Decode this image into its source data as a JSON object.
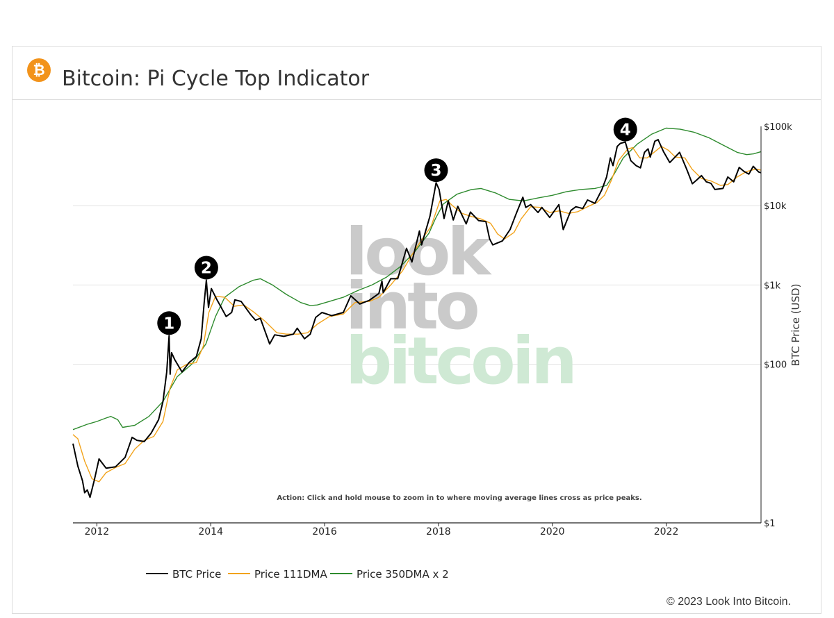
{
  "header": {
    "title": "Bitcoin: Pi Cycle Top Indicator",
    "logo_icon": "bitcoin-icon",
    "logo_color": "#f2931b"
  },
  "footer": {
    "copyright": "© 2023 Look Into Bitcoin."
  },
  "watermark": {
    "line1": "look",
    "line2": "into",
    "line3": "bitcoin"
  },
  "chart_data": {
    "type": "line",
    "title": "Bitcoin: Pi Cycle Top Indicator",
    "ylabel": "BTC Price (USD)",
    "xlabel": "",
    "y_scale": "log",
    "ylim": [
      1,
      100000
    ],
    "xlim": [
      "2011-08",
      "2023-09"
    ],
    "x_ticks": [
      "2012",
      "2014",
      "2016",
      "2018",
      "2020",
      "2022"
    ],
    "y_ticks": [
      "$1",
      "$100",
      "$1k",
      "$10k",
      "$100k"
    ],
    "y_tick_values": [
      1,
      100,
      1000,
      10000,
      100000
    ],
    "grid": "horizontal",
    "legend_position": "bottom",
    "annotation": "Action: Click and hold mouse to zoom in to where moving average lines cross as price peaks.",
    "markers": [
      {
        "label": "1",
        "x": "2013-04-09",
        "y": 230
      },
      {
        "label": "2",
        "x": "2013-12-04",
        "y": 1150
      },
      {
        "label": "3",
        "x": "2017-12-17",
        "y": 19500
      },
      {
        "label": "4",
        "x": "2021-04-14",
        "y": 63500
      }
    ],
    "series": [
      {
        "name": "BTC Price",
        "color": "#000000",
        "points": [
          [
            "2011-08-01",
            10
          ],
          [
            "2011-09-01",
            5.2
          ],
          [
            "2011-10-01",
            3.4
          ],
          [
            "2011-10-15",
            2.4
          ],
          [
            "2011-11-01",
            2.6
          ],
          [
            "2011-11-18",
            2.1
          ],
          [
            "2011-12-15",
            3.4
          ],
          [
            "2012-01-15",
            6.4
          ],
          [
            "2012-03-01",
            4.9
          ],
          [
            "2012-05-01",
            5.1
          ],
          [
            "2012-07-01",
            6.7
          ],
          [
            "2012-08-15",
            12
          ],
          [
            "2012-09-15",
            11
          ],
          [
            "2012-11-01",
            10.6
          ],
          [
            "2012-12-15",
            13.5
          ],
          [
            "2013-02-01",
            20
          ],
          [
            "2013-03-01",
            34
          ],
          [
            "2013-03-25",
            80
          ],
          [
            "2013-04-09",
            230
          ],
          [
            "2013-04-16",
            75
          ],
          [
            "2013-04-25",
            140
          ],
          [
            "2013-05-15",
            115
          ],
          [
            "2013-07-01",
            80
          ],
          [
            "2013-08-15",
            105
          ],
          [
            "2013-10-01",
            125
          ],
          [
            "2013-11-01",
            210
          ],
          [
            "2013-11-20",
            600
          ],
          [
            "2013-12-04",
            1150
          ],
          [
            "2013-12-18",
            520
          ],
          [
            "2014-01-05",
            900
          ],
          [
            "2014-02-10",
            650
          ],
          [
            "2014-03-01",
            560
          ],
          [
            "2014-04-10",
            400
          ],
          [
            "2014-05-15",
            450
          ],
          [
            "2014-06-05",
            650
          ],
          [
            "2014-07-15",
            620
          ],
          [
            "2014-09-15",
            420
          ],
          [
            "2014-10-15",
            360
          ],
          [
            "2014-11-15",
            380
          ],
          [
            "2015-01-14",
            180
          ],
          [
            "2015-02-15",
            235
          ],
          [
            "2015-04-15",
            225
          ],
          [
            "2015-06-15",
            240
          ],
          [
            "2015-07-10",
            285
          ],
          [
            "2015-08-25",
            210
          ],
          [
            "2015-10-01",
            240
          ],
          [
            "2015-11-05",
            390
          ],
          [
            "2015-12-15",
            450
          ],
          [
            "2016-02-15",
            410
          ],
          [
            "2016-05-01",
            450
          ],
          [
            "2016-06-18",
            730
          ],
          [
            "2016-08-15",
            575
          ],
          [
            "2016-10-15",
            640
          ],
          [
            "2016-12-15",
            780
          ],
          [
            "2017-01-04",
            1120
          ],
          [
            "2017-01-12",
            800
          ],
          [
            "2017-03-01",
            1200
          ],
          [
            "2017-04-15",
            1200
          ],
          [
            "2017-06-10",
            2900
          ],
          [
            "2017-07-15",
            1950
          ],
          [
            "2017-09-01",
            4800
          ],
          [
            "2017-09-15",
            3200
          ],
          [
            "2017-11-08",
            7400
          ],
          [
            "2017-12-17",
            19500
          ],
          [
            "2018-01-05",
            16000
          ],
          [
            "2018-02-06",
            6900
          ],
          [
            "2018-03-05",
            11500
          ],
          [
            "2018-04-06",
            6600
          ],
          [
            "2018-05-05",
            9800
          ],
          [
            "2018-06-28",
            5900
          ],
          [
            "2018-07-25",
            8300
          ],
          [
            "2018-09-15",
            6500
          ],
          [
            "2018-11-01",
            6300
          ],
          [
            "2018-11-25",
            3800
          ],
          [
            "2018-12-15",
            3200
          ],
          [
            "2019-02-15",
            3600
          ],
          [
            "2019-04-05",
            5000
          ],
          [
            "2019-05-15",
            8000
          ],
          [
            "2019-06-26",
            12800
          ],
          [
            "2019-07-15",
            9500
          ],
          [
            "2019-08-15",
            10300
          ],
          [
            "2019-10-01",
            8200
          ],
          [
            "2019-10-26",
            9500
          ],
          [
            "2019-12-15",
            7100
          ],
          [
            "2020-02-12",
            10300
          ],
          [
            "2020-03-12",
            5000
          ],
          [
            "2020-04-30",
            8700
          ],
          [
            "2020-06-01",
            9700
          ],
          [
            "2020-07-15",
            9200
          ],
          [
            "2020-08-15",
            11800
          ],
          [
            "2020-10-01",
            10700
          ],
          [
            "2020-11-15",
            16000
          ],
          [
            "2020-12-15",
            23000
          ],
          [
            "2021-01-08",
            40000
          ],
          [
            "2021-01-25",
            32000
          ],
          [
            "2021-02-21",
            56000
          ],
          [
            "2021-03-13",
            61000
          ],
          [
            "2021-04-14",
            63500
          ],
          [
            "2021-05-19",
            37000
          ],
          [
            "2021-06-22",
            32000
          ],
          [
            "2021-07-20",
            30000
          ],
          [
            "2021-08-15",
            47000
          ],
          [
            "2021-09-07",
            52000
          ],
          [
            "2021-09-21",
            41000
          ],
          [
            "2021-10-20",
            65000
          ],
          [
            "2021-11-10",
            68000
          ],
          [
            "2021-12-15",
            48000
          ],
          [
            "2022-01-24",
            35000
          ],
          [
            "2022-03-28",
            47000
          ],
          [
            "2022-05-12",
            29000
          ],
          [
            "2022-06-18",
            18900
          ],
          [
            "2022-07-15",
            21000
          ],
          [
            "2022-08-15",
            24000
          ],
          [
            "2022-09-15",
            20000
          ],
          [
            "2022-10-15",
            19100
          ],
          [
            "2022-11-09",
            16000
          ],
          [
            "2022-12-31",
            16500
          ],
          [
            "2023-01-31",
            23000
          ],
          [
            "2023-03-10",
            20000
          ],
          [
            "2023-04-14",
            30400
          ],
          [
            "2023-05-15",
            27000
          ],
          [
            "2023-06-15",
            25000
          ],
          [
            "2023-07-13",
            31400
          ],
          [
            "2023-08-17",
            26600
          ],
          [
            "2023-09-01",
            26000
          ]
        ]
      },
      {
        "name": "Price 111DMA",
        "color": "#f2a31b",
        "points": [
          [
            "2011-08-01",
            13
          ],
          [
            "2011-09-01",
            11.5
          ],
          [
            "2011-10-15",
            6
          ],
          [
            "2011-12-01",
            3.6
          ],
          [
            "2012-01-15",
            3.3
          ],
          [
            "2012-03-01",
            4.3
          ],
          [
            "2012-05-01",
            5
          ],
          [
            "2012-07-01",
            5.6
          ],
          [
            "2012-09-01",
            8.5
          ],
          [
            "2012-11-01",
            11
          ],
          [
            "2013-01-01",
            12.3
          ],
          [
            "2013-03-01",
            19
          ],
          [
            "2013-04-15",
            50
          ],
          [
            "2013-06-01",
            85
          ],
          [
            "2013-08-01",
            100
          ],
          [
            "2013-10-01",
            105
          ],
          [
            "2013-11-15",
            170
          ],
          [
            "2013-12-20",
            450
          ],
          [
            "2014-02-01",
            720
          ],
          [
            "2014-04-01",
            700
          ],
          [
            "2014-06-01",
            540
          ],
          [
            "2014-08-01",
            560
          ],
          [
            "2014-10-01",
            460
          ],
          [
            "2014-12-15",
            350
          ],
          [
            "2015-03-01",
            250
          ],
          [
            "2015-05-01",
            240
          ],
          [
            "2015-07-15",
            240
          ],
          [
            "2015-09-15",
            250
          ],
          [
            "2015-11-15",
            320
          ],
          [
            "2016-02-01",
            400
          ],
          [
            "2016-05-01",
            430
          ],
          [
            "2016-07-15",
            600
          ],
          [
            "2016-10-15",
            620
          ],
          [
            "2016-12-15",
            700
          ],
          [
            "2017-03-01",
            1000
          ],
          [
            "2017-05-15",
            1500
          ],
          [
            "2017-07-15",
            2400
          ],
          [
            "2017-09-15",
            3700
          ],
          [
            "2017-11-15",
            5500
          ],
          [
            "2018-01-10",
            11500
          ],
          [
            "2018-02-20",
            12000
          ],
          [
            "2018-04-01",
            10000
          ],
          [
            "2018-06-01",
            8000
          ],
          [
            "2018-08-01",
            7300
          ],
          [
            "2018-10-01",
            6800
          ],
          [
            "2018-12-01",
            6000
          ],
          [
            "2019-01-15",
            4400
          ],
          [
            "2019-03-01",
            3800
          ],
          [
            "2019-05-01",
            4600
          ],
          [
            "2019-06-15",
            6800
          ],
          [
            "2019-08-15",
            9700
          ],
          [
            "2019-10-15",
            9500
          ],
          [
            "2019-12-15",
            8200
          ],
          [
            "2020-02-15",
            8600
          ],
          [
            "2020-04-15",
            8000
          ],
          [
            "2020-06-15",
            8400
          ],
          [
            "2020-08-15",
            9700
          ],
          [
            "2020-10-15",
            11000
          ],
          [
            "2020-12-01",
            13500
          ],
          [
            "2021-01-15",
            21000
          ],
          [
            "2021-03-01",
            37000
          ],
          [
            "2021-04-30",
            52000
          ],
          [
            "2021-06-01",
            54000
          ],
          [
            "2021-07-15",
            40000
          ],
          [
            "2021-09-01",
            40000
          ],
          [
            "2021-10-15",
            47000
          ],
          [
            "2021-12-01",
            56000
          ],
          [
            "2022-01-15",
            50000
          ],
          [
            "2022-03-01",
            41000
          ],
          [
            "2022-05-01",
            40000
          ],
          [
            "2022-06-15",
            29000
          ],
          [
            "2022-08-15",
            22000
          ],
          [
            "2022-10-15",
            20500
          ],
          [
            "2022-12-15",
            18000
          ],
          [
            "2023-02-01",
            18500
          ],
          [
            "2023-04-01",
            23000
          ],
          [
            "2023-06-01",
            27000
          ],
          [
            "2023-08-01",
            29000
          ],
          [
            "2023-09-01",
            28000
          ]
        ]
      },
      {
        "name": "Price 350DMA x 2",
        "color": "#2e8b2e",
        "points": [
          [
            "2011-08-01",
            15
          ],
          [
            "2011-11-01",
            17.5
          ],
          [
            "2012-01-01",
            19
          ],
          [
            "2012-03-01",
            21
          ],
          [
            "2012-04-01",
            22
          ],
          [
            "2012-05-15",
            20
          ],
          [
            "2012-06-15",
            16
          ],
          [
            "2012-09-01",
            17
          ],
          [
            "2012-12-01",
            22
          ],
          [
            "2013-03-01",
            34
          ],
          [
            "2013-06-01",
            70
          ],
          [
            "2013-09-01",
            100
          ],
          [
            "2013-12-01",
            180
          ],
          [
            "2014-02-01",
            400
          ],
          [
            "2014-04-01",
            700
          ],
          [
            "2014-07-01",
            950
          ],
          [
            "2014-10-01",
            1150
          ],
          [
            "2014-11-15",
            1200
          ],
          [
            "2015-02-01",
            1000
          ],
          [
            "2015-05-01",
            760
          ],
          [
            "2015-08-01",
            600
          ],
          [
            "2015-10-01",
            550
          ],
          [
            "2015-11-15",
            560
          ],
          [
            "2016-02-01",
            620
          ],
          [
            "2016-05-01",
            700
          ],
          [
            "2016-08-01",
            850
          ],
          [
            "2016-11-01",
            1000
          ],
          [
            "2017-02-01",
            1250
          ],
          [
            "2017-05-01",
            1700
          ],
          [
            "2017-08-01",
            2600
          ],
          [
            "2017-11-01",
            4500
          ],
          [
            "2017-12-15",
            7000
          ],
          [
            "2018-02-01",
            10500
          ],
          [
            "2018-05-01",
            14000
          ],
          [
            "2018-08-01",
            16000
          ],
          [
            "2018-10-01",
            16500
          ],
          [
            "2019-01-01",
            14500
          ],
          [
            "2019-04-01",
            12000
          ],
          [
            "2019-07-01",
            11500
          ],
          [
            "2019-10-01",
            12500
          ],
          [
            "2020-01-01",
            13500
          ],
          [
            "2020-04-01",
            15000
          ],
          [
            "2020-07-01",
            16000
          ],
          [
            "2020-10-01",
            16500
          ],
          [
            "2020-12-15",
            18000
          ],
          [
            "2021-02-01",
            25000
          ],
          [
            "2021-04-01",
            40000
          ],
          [
            "2021-07-01",
            60000
          ],
          [
            "2021-10-01",
            80000
          ],
          [
            "2022-01-01",
            95000
          ],
          [
            "2022-04-01",
            92000
          ],
          [
            "2022-07-01",
            84000
          ],
          [
            "2022-10-01",
            72000
          ],
          [
            "2023-01-01",
            58000
          ],
          [
            "2023-04-01",
            47000
          ],
          [
            "2023-06-01",
            44000
          ],
          [
            "2023-07-15",
            45000
          ],
          [
            "2023-09-01",
            48000
          ]
        ]
      }
    ]
  }
}
